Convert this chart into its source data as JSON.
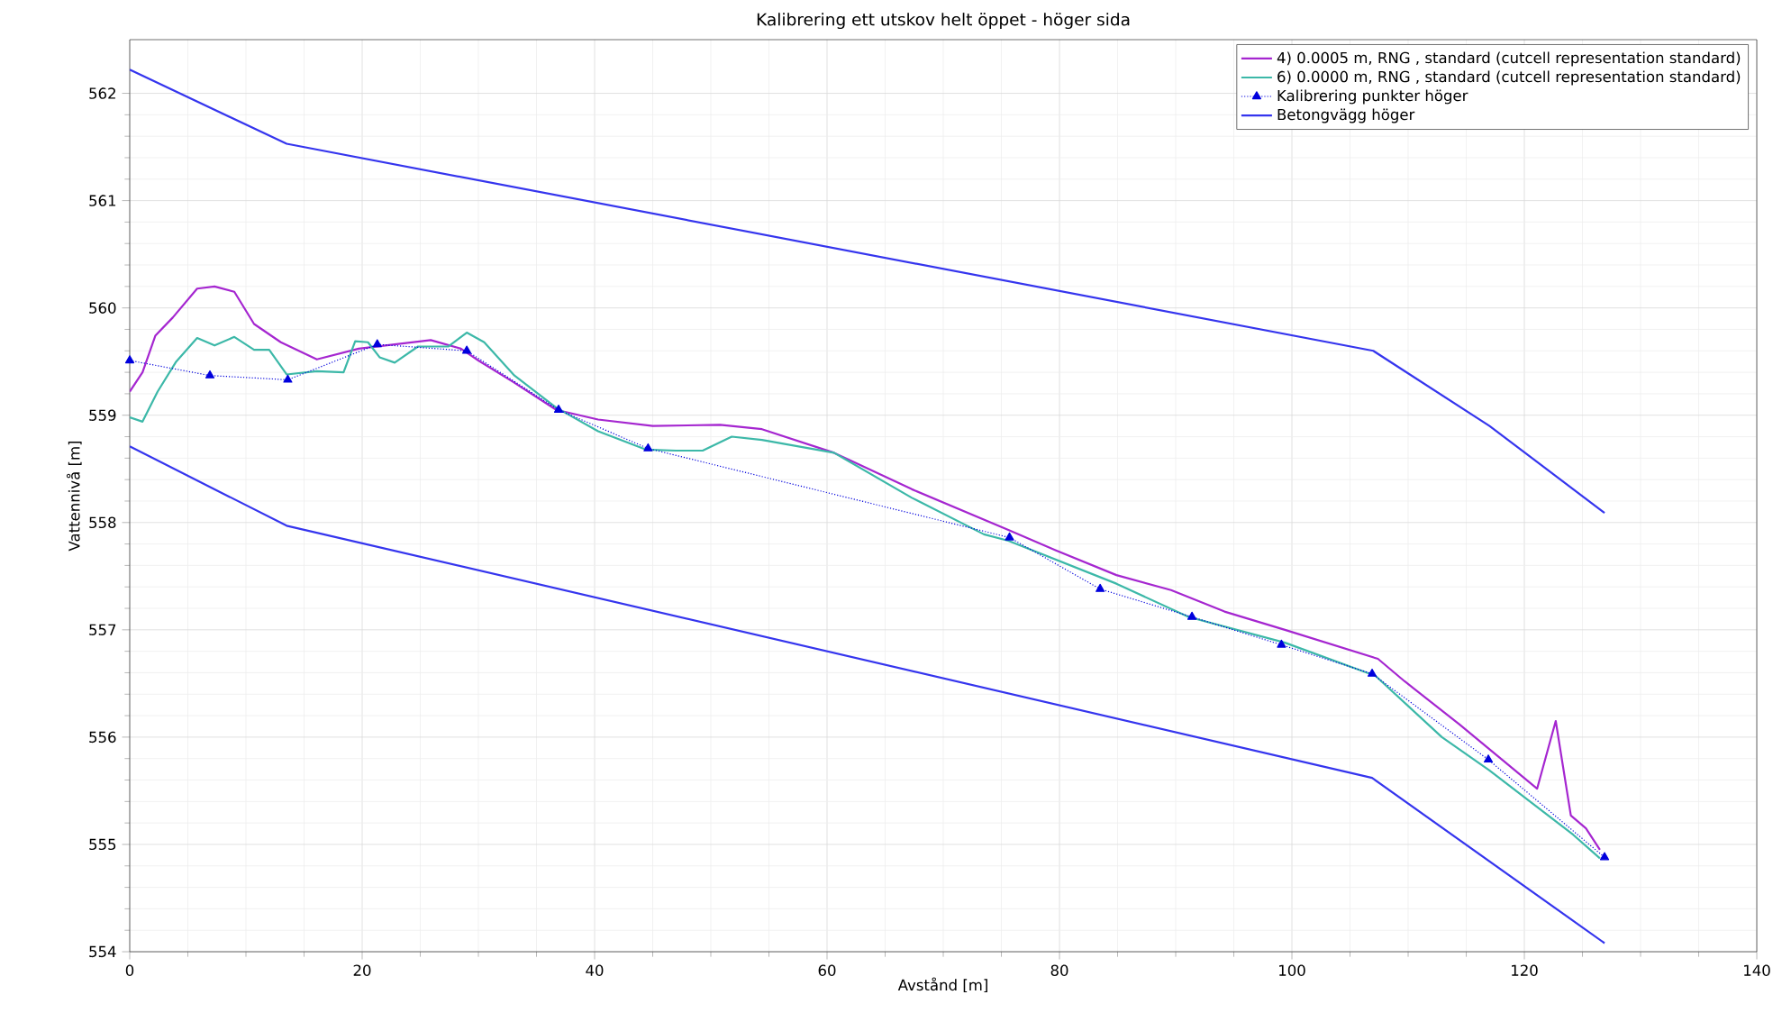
{
  "chart_data": {
    "type": "line",
    "title": "Kalibrering ett utskov helt öppet - höger sida",
    "xlabel": "Avstånd [m]",
    "ylabel": "Vattennivå [m]",
    "xlim": [
      0,
      140
    ],
    "ylim": [
      554,
      562.5
    ],
    "xticks": [
      0,
      20,
      40,
      60,
      80,
      100,
      120,
      140
    ],
    "yticks": [
      554,
      555,
      556,
      557,
      558,
      559,
      560,
      561,
      562
    ],
    "grid": true,
    "legend": "top right",
    "series": [
      {
        "name": "4) 0.0005 m, RNG , standard (cutcell representation standard)",
        "color": "#a526d0",
        "marker": "none",
        "line_style": "solid",
        "x": [
          0,
          1.1,
          2.2,
          3.7,
          5.8,
          7.3,
          9,
          10.7,
          13,
          16.1,
          19.7,
          25.9,
          28.5,
          30,
          33,
          36.7,
          40.3,
          45,
          50.8,
          54.4,
          60.6,
          67.3,
          75.6,
          79.7,
          84.9,
          89.6,
          94.2,
          99.4,
          107.4,
          109.7,
          114.4,
          121.1,
          122.7,
          124,
          125.3,
          126.5
        ],
        "values": [
          559.22,
          559.4,
          559.74,
          559.91,
          560.18,
          560.2,
          560.15,
          559.85,
          559.68,
          559.52,
          559.62,
          559.7,
          559.62,
          559.51,
          559.31,
          559.05,
          558.96,
          558.9,
          558.91,
          558.87,
          558.65,
          558.31,
          557.93,
          557.74,
          557.51,
          557.37,
          557.17,
          557.0,
          556.73,
          556.52,
          556.12,
          555.52,
          556.15,
          555.27,
          555.15,
          554.95
        ]
      },
      {
        "name": "6) 0.0000 m, RNG , standard (cutcell representation standard)",
        "color": "#3cb8a8",
        "marker": "none",
        "line_style": "solid",
        "x": [
          0,
          1.1,
          2.4,
          4,
          5.8,
          7.3,
          9,
          10.7,
          12,
          13.5,
          16.1,
          18.4,
          19.4,
          20.5,
          21.5,
          22.8,
          24.8,
          27.4,
          29,
          30.5,
          33.1,
          36.7,
          40.3,
          44.4,
          47,
          49.3,
          51.8,
          54.4,
          60.6,
          67.3,
          73.5,
          75.6,
          84.9,
          91.1,
          99.4,
          107.2,
          112.9,
          117,
          124.2,
          126.5
        ],
        "values": [
          558.98,
          558.94,
          559.22,
          559.5,
          559.72,
          559.65,
          559.73,
          559.61,
          559.61,
          559.38,
          559.41,
          559.4,
          559.69,
          559.68,
          559.54,
          559.49,
          559.64,
          559.64,
          559.77,
          559.68,
          559.37,
          559.07,
          558.85,
          558.68,
          558.67,
          558.67,
          558.8,
          558.77,
          558.65,
          558.23,
          557.89,
          557.83,
          557.43,
          557.12,
          556.88,
          556.57,
          556.0,
          555.69,
          555.09,
          554.87
        ]
      },
      {
        "name": "Kalibrering punkter höger",
        "color": "#0000dd",
        "marker": "triangle",
        "line_style": "dotted",
        "x": [
          0,
          6.9,
          13.6,
          21.3,
          29,
          36.9,
          44.6,
          75.7,
          83.5,
          91.4,
          99.1,
          106.9,
          116.9,
          126.9
        ],
        "values": [
          559.51,
          559.37,
          559.33,
          559.66,
          559.6,
          559.05,
          558.69,
          557.86,
          557.38,
          557.12,
          556.86,
          556.59,
          555.79,
          554.88
        ]
      },
      {
        "name": "Betongvägg höger",
        "color": "#3535ee",
        "marker": "none",
        "line_style": "solid",
        "x": [
          0,
          13.5,
          107,
          117,
          126.9
        ],
        "values": [
          562.22,
          561.53,
          559.6,
          558.9,
          558.09
        ]
      },
      {
        "color": "#3535ee",
        "marker": "none",
        "line_style": "solid",
        "x": [
          0,
          13.5,
          106.9,
          126.9
        ],
        "values": [
          558.71,
          557.97,
          555.62,
          554.08
        ]
      }
    ]
  }
}
